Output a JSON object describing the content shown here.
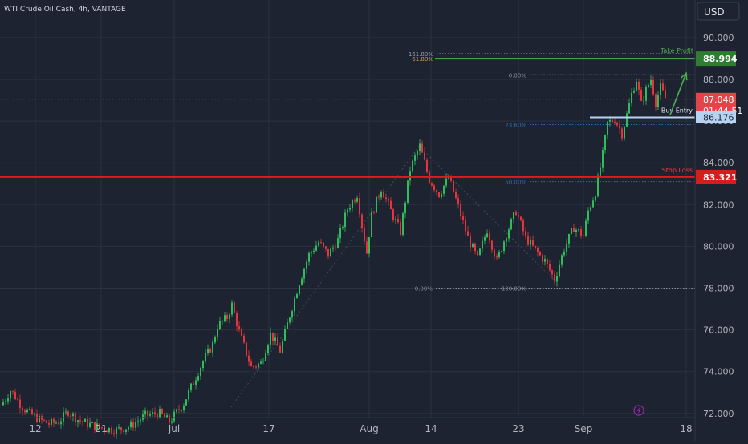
{
  "header": {
    "symbol_title": "WTI Crude Oil Cash, 4h, VANTAGE"
  },
  "currency_label": "USD",
  "colors": {
    "background": "#1e2331",
    "grid": "#2b3140",
    "axis_text": "#b2b5be",
    "up_candle": "#2fbd5a",
    "down_candle": "#e5343b",
    "fib_line": "#8a90a0",
    "fib_blue": "#2c6fb3",
    "take_profit": "#4caf50",
    "take_profit_label_bg": "#2e7d32",
    "entry": "#b7d3f2",
    "stop_loss": "#e01b1b",
    "stop_label_bg": "#d81b1b",
    "price_label_bg": "#e5434a"
  },
  "price_tags": {
    "take_profit": "88.994",
    "current_price": "87.048",
    "countdown": "01:44:51",
    "entry": "86.176",
    "stop_loss": "83.321"
  },
  "annotations": {
    "take_profit": "Take Profit",
    "buy_entry": "Buy Entry",
    "stop_loss": "Stop Loss",
    "fib_161": "161.80%",
    "fib_618": "61.80%",
    "fib_0_top": "0.00%",
    "fib_236": "23.60%",
    "fib_50": "50.00%",
    "fib_0_bottom": "0.00%",
    "fib_100": "100.00%"
  },
  "icons": {
    "lightning": "lightning-icon"
  },
  "chart_data": {
    "type": "candlestick",
    "title": "WTI Crude Oil Cash, 4h, VANTAGE",
    "ylabel": "USD",
    "ylim": [
      71.8,
      91.8
    ],
    "y_ticks": [
      "72.000",
      "74.000",
      "76.000",
      "78.000",
      "80.000",
      "82.000",
      "84.000",
      "86.000",
      "88.000",
      "90.000"
    ],
    "x_tick_labels": [
      "12",
      "21",
      "Jul",
      "17",
      "Aug",
      "14",
      "23",
      "Sep",
      "18"
    ],
    "horizontal_levels": {
      "take_profit": 88.994,
      "entry": 86.176,
      "stop_loss": 83.321,
      "current_price": 87.048
    },
    "fib_levels": {
      "161.80%": 89.23,
      "61.80%": 88.99,
      "0.00% (top)": 88.22,
      "23.60%": 85.83,
      "50.00%": 83.1,
      "0.00% (bottom)": 78.0
    },
    "price_path": [
      [
        0,
        72.4
      ],
      [
        2,
        72.7
      ],
      [
        4,
        73.1
      ],
      [
        6,
        72.8
      ],
      [
        9,
        72.3
      ],
      [
        12,
        72.0
      ],
      [
        16,
        71.7
      ],
      [
        20,
        71.5
      ],
      [
        24,
        71.6
      ],
      [
        28,
        72.1
      ],
      [
        32,
        71.7
      ],
      [
        36,
        71.5
      ],
      [
        42,
        71.3
      ],
      [
        48,
        71.2
      ],
      [
        54,
        71.4
      ],
      [
        60,
        71.9
      ],
      [
        66,
        72.0
      ],
      [
        70,
        71.6
      ],
      [
        76,
        72.5
      ],
      [
        80,
        73.5
      ],
      [
        84,
        74.5
      ],
      [
        88,
        75.3
      ],
      [
        90,
        76.2
      ],
      [
        94,
        76.6
      ],
      [
        96,
        77.2
      ],
      [
        99,
        75.9
      ],
      [
        104,
        74.2
      ],
      [
        108,
        74.4
      ],
      [
        112,
        75.8
      ],
      [
        116,
        75.0
      ],
      [
        120,
        76.7
      ],
      [
        124,
        78.3
      ],
      [
        128,
        79.6
      ],
      [
        132,
        80.2
      ],
      [
        136,
        79.6
      ],
      [
        140,
        80.3
      ],
      [
        144,
        81.8
      ],
      [
        148,
        82.5
      ],
      [
        150,
        81.0
      ],
      [
        152,
        79.7
      ],
      [
        154,
        81.5
      ],
      [
        158,
        82.8
      ],
      [
        162,
        81.7
      ],
      [
        166,
        80.7
      ],
      [
        170,
        83.7
      ],
      [
        174,
        84.8
      ],
      [
        178,
        83.2
      ],
      [
        182,
        82.5
      ],
      [
        186,
        83.3
      ],
      [
        190,
        81.9
      ],
      [
        194,
        80.4
      ],
      [
        198,
        79.4
      ],
      [
        202,
        80.8
      ],
      [
        206,
        79.3
      ],
      [
        210,
        80.6
      ],
      [
        214,
        81.7
      ],
      [
        218,
        80.4
      ],
      [
        222,
        79.8
      ],
      [
        226,
        79.3
      ],
      [
        230,
        78.4
      ],
      [
        234,
        79.9
      ],
      [
        238,
        80.9
      ],
      [
        242,
        80.5
      ],
      [
        244,
        81.7
      ],
      [
        247,
        82.6
      ],
      [
        250,
        84.4
      ],
      [
        252,
        85.9
      ],
      [
        255,
        86.1
      ],
      [
        258,
        85.4
      ],
      [
        260,
        86.3
      ],
      [
        262,
        87.3
      ],
      [
        264,
        88.0
      ],
      [
        266,
        86.8
      ],
      [
        268,
        87.5
      ],
      [
        270,
        88.0
      ],
      [
        272,
        86.9
      ],
      [
        274,
        87.6
      ],
      [
        276,
        87.1
      ]
    ],
    "arrow": {
      "from": [
        278,
        86.3
      ],
      "to": [
        283,
        88.3
      ]
    }
  }
}
